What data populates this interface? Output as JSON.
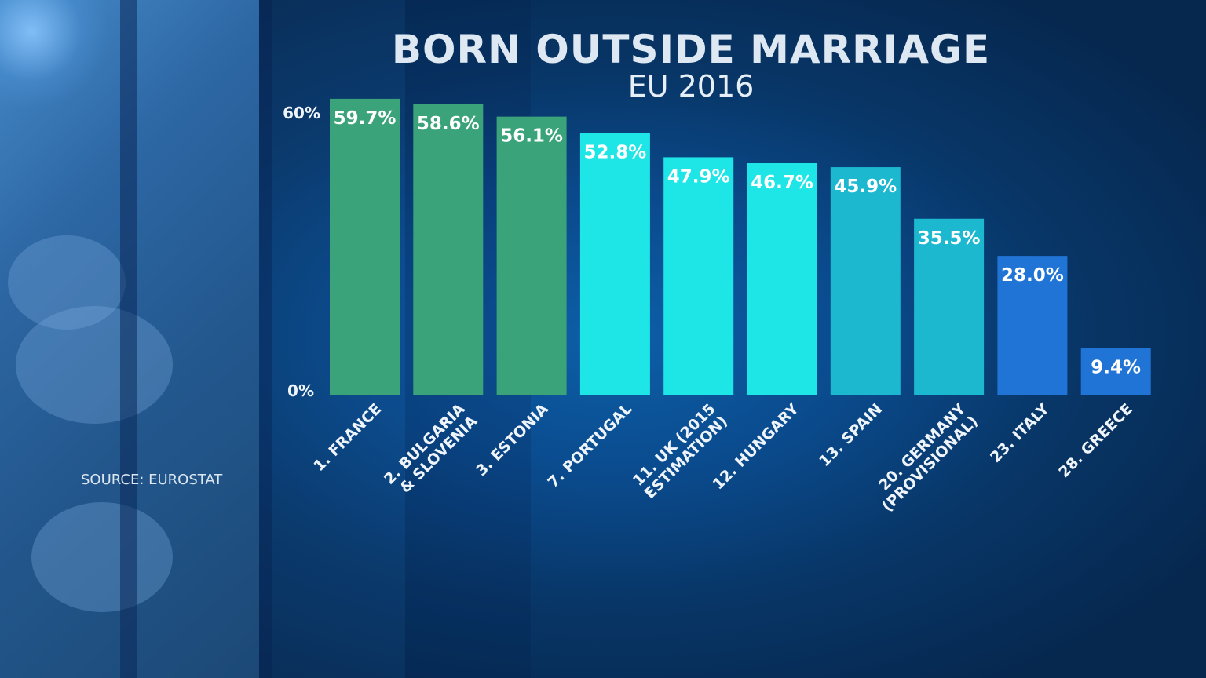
{
  "title": "BORN OUTSIDE MARRIAGE",
  "subtitle": "EU 2016",
  "source": "SOURCE: EUROSTAT",
  "colors": {
    "green": "#3aa37a",
    "cyan": "#1ee6e6",
    "teal": "#1bb8cf",
    "blue": "#1f74d6"
  },
  "chart_data": {
    "type": "bar",
    "title": "BORN OUTSIDE MARRIAGE",
    "subtitle": "EU 2016",
    "ylim": [
      0,
      60
    ],
    "yticks": [
      "0%",
      "60%"
    ],
    "categories": [
      [
        "1. FRANCE"
      ],
      [
        "2. BULGARIA",
        "& SLOVENIA"
      ],
      [
        "3. ESTONIA"
      ],
      [
        "7. PORTUGAL"
      ],
      [
        "11. UK (2015",
        "ESTIMATION)"
      ],
      [
        "12. HUNGARY"
      ],
      [
        "13. SPAIN"
      ],
      [
        "20. GERMANY",
        "(PROVISIONAL)"
      ],
      [
        "23. ITALY"
      ],
      [
        "28. GREECE"
      ]
    ],
    "values": [
      59.7,
      58.6,
      56.1,
      52.8,
      47.9,
      46.7,
      45.9,
      35.5,
      28.0,
      9.4
    ],
    "value_labels": [
      "59.7%",
      "58.6%",
      "56.1%",
      "52.8%",
      "47.9%",
      "46.7%",
      "45.9%",
      "35.5%",
      "28.0%",
      "9.4%"
    ],
    "bar_colors": [
      "green",
      "green",
      "green",
      "cyan",
      "cyan",
      "cyan",
      "teal",
      "teal",
      "blue",
      "blue"
    ]
  }
}
